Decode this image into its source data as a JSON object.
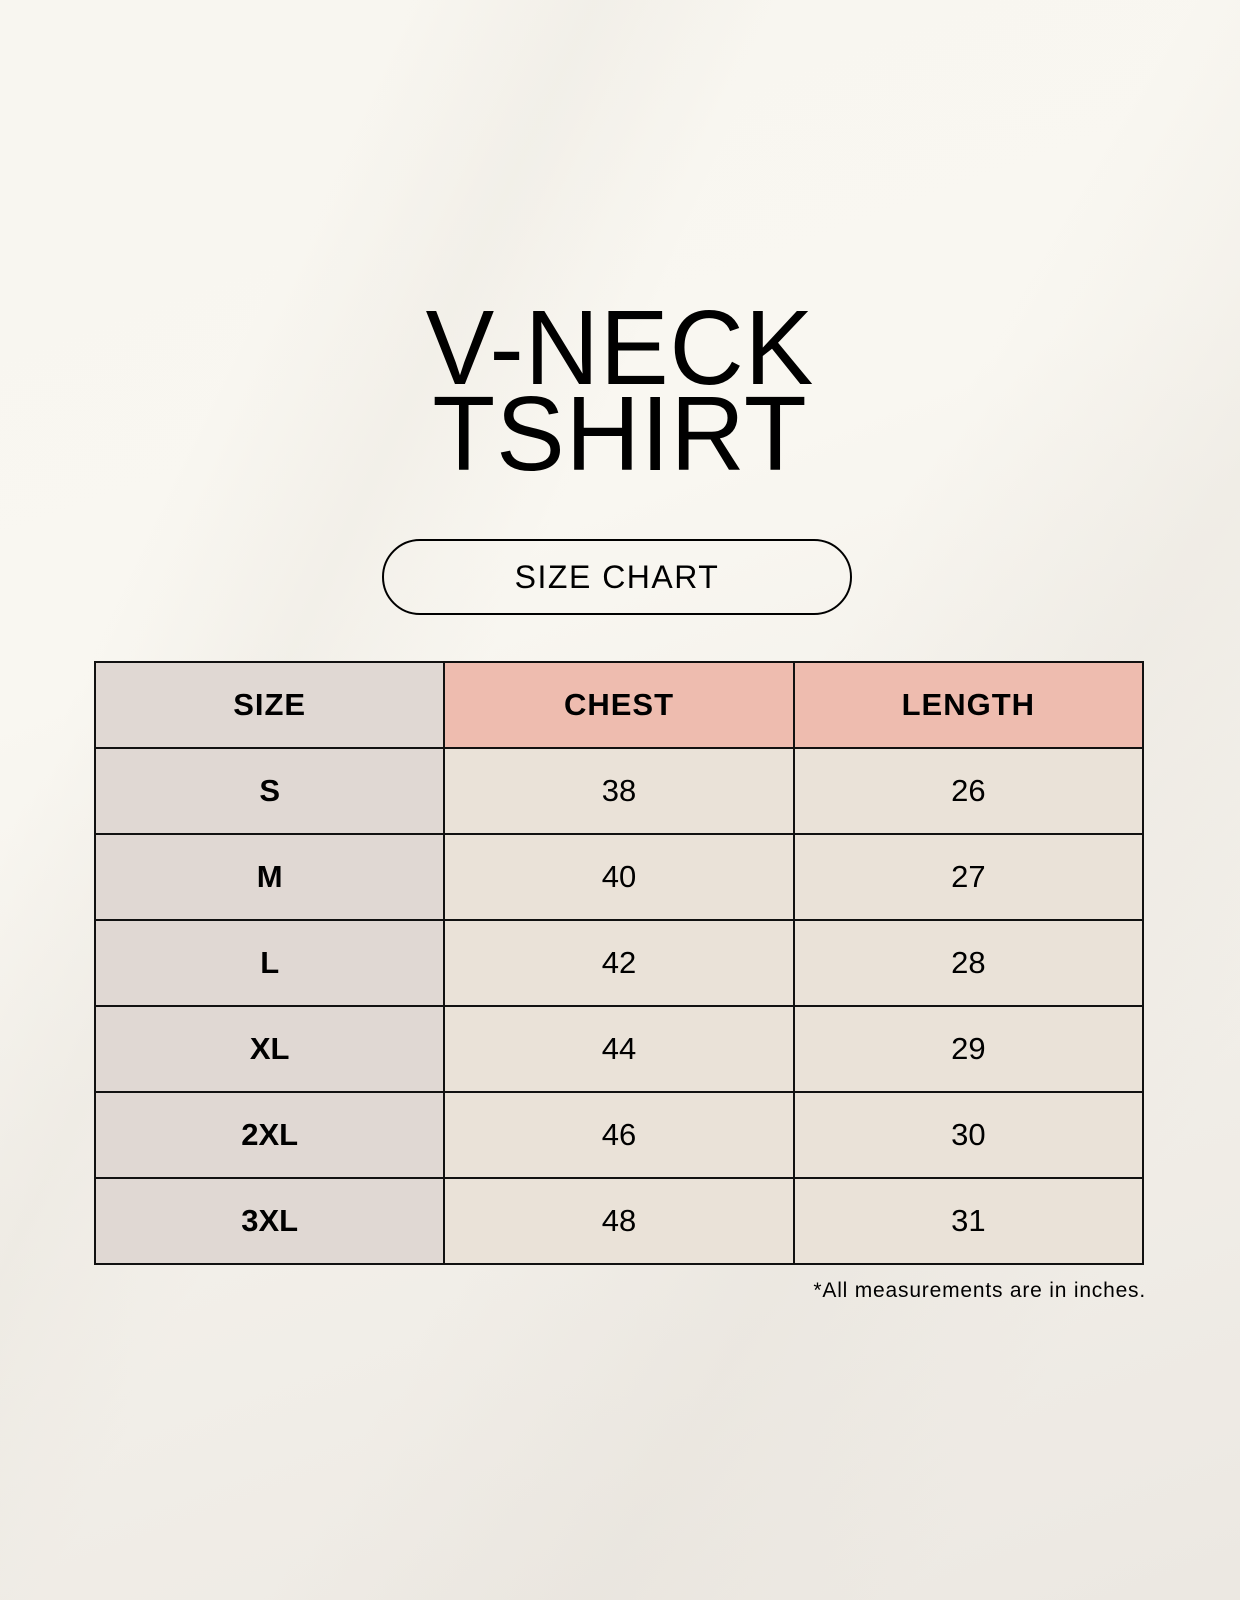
{
  "title": {
    "line1": "V-NECK",
    "line2": "TSHIRT"
  },
  "subtitle": "SIZE CHART",
  "table": {
    "headers": [
      "SIZE",
      "CHEST",
      "LENGTH"
    ],
    "rows": [
      [
        "S",
        "38",
        "26"
      ],
      [
        "M",
        "40",
        "27"
      ],
      [
        "L",
        "42",
        "28"
      ],
      [
        "XL",
        "44",
        "29"
      ],
      [
        "2XL",
        "46",
        "30"
      ],
      [
        "3XL",
        "48",
        "31"
      ]
    ]
  },
  "footnote": "*All measurements are in inches.",
  "colors": {
    "size_column": "#e0d8d3",
    "header_accent": "#eebcaf",
    "value_cells": "#eae2d8"
  }
}
